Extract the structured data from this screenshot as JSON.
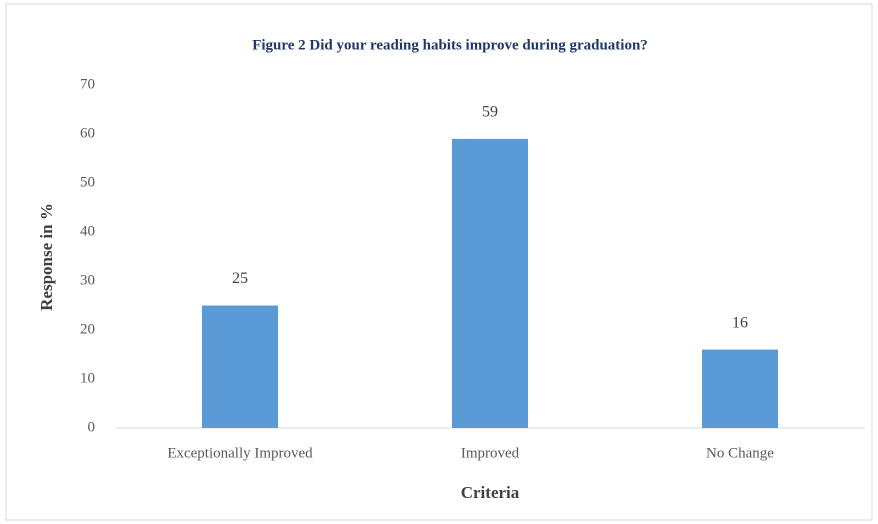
{
  "chart_data": {
    "type": "bar",
    "title": "Figure 2 Did your reading habits improve during graduation?",
    "x_label": "Criteria",
    "y_label": "Response in %",
    "categories": [
      "Exceptionally Improved",
      "Improved",
      "No Change"
    ],
    "values": [
      25,
      59,
      16
    ],
    "color": "#5b9bd5",
    "ylim": [
      0,
      70
    ],
    "yticks": [
      0,
      10,
      20,
      30,
      40,
      50,
      60,
      70
    ],
    "grid": false
  }
}
